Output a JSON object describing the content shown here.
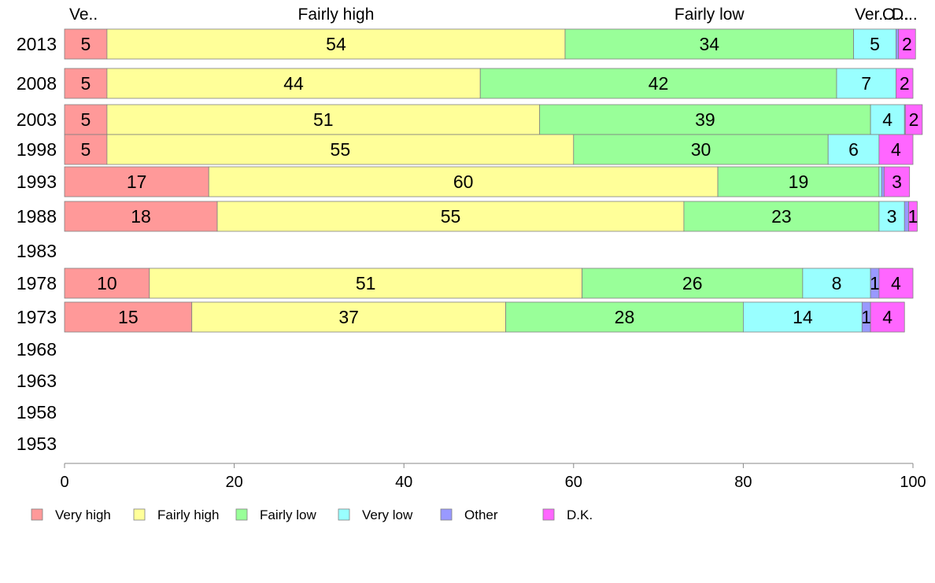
{
  "chart_data": {
    "type": "bar",
    "orientation": "horizontal",
    "stacked": true,
    "categories": [
      "2013",
      "2008",
      "2003",
      "1998",
      "1993",
      "1988",
      "1983",
      "1978",
      "1973",
      "1968",
      "1963",
      "1958",
      "1953"
    ],
    "series": [
      {
        "name": "Very high",
        "color": "#ff9999",
        "values": [
          5,
          5,
          5,
          5,
          17,
          18,
          null,
          10,
          15,
          null,
          null,
          null,
          null
        ]
      },
      {
        "name": "Fairly high",
        "color": "#ffff99",
        "values": [
          54,
          44,
          51,
          55,
          60,
          55,
          null,
          51,
          37,
          null,
          null,
          null,
          null
        ]
      },
      {
        "name": "Fairly low",
        "color": "#99ff99",
        "values": [
          34,
          42,
          39,
          30,
          19,
          23,
          null,
          26,
          28,
          null,
          null,
          null,
          null
        ]
      },
      {
        "name": "Very low",
        "color": "#99ffff",
        "values": [
          5,
          7,
          4,
          6,
          0.3,
          3,
          null,
          8,
          14,
          null,
          null,
          null,
          null
        ]
      },
      {
        "name": "Other",
        "color": "#9999ff",
        "values": [
          0.3,
          0,
          0.1,
          0,
          0.3,
          0.5,
          null,
          1,
          1,
          null,
          null,
          null,
          null
        ]
      },
      {
        "name": "D.K.",
        "color": "#ff66ff",
        "values": [
          2,
          2,
          2,
          4,
          3,
          1,
          null,
          4,
          4,
          null,
          null,
          null,
          null
        ]
      }
    ],
    "top_labels": [
      "Ve..",
      "Fairly high",
      "Fairly low",
      "Very low",
      "Other",
      "D.K."
    ],
    "top_labels_shown": [
      "Ve..",
      "Fairly high",
      "Fairly low",
      "Ver...",
      "O...",
      "D..."
    ],
    "xticks": [
      0,
      20,
      40,
      60,
      80,
      100
    ],
    "xlim": [
      0,
      100
    ],
    "legend_position": "bottom",
    "grid": false
  }
}
